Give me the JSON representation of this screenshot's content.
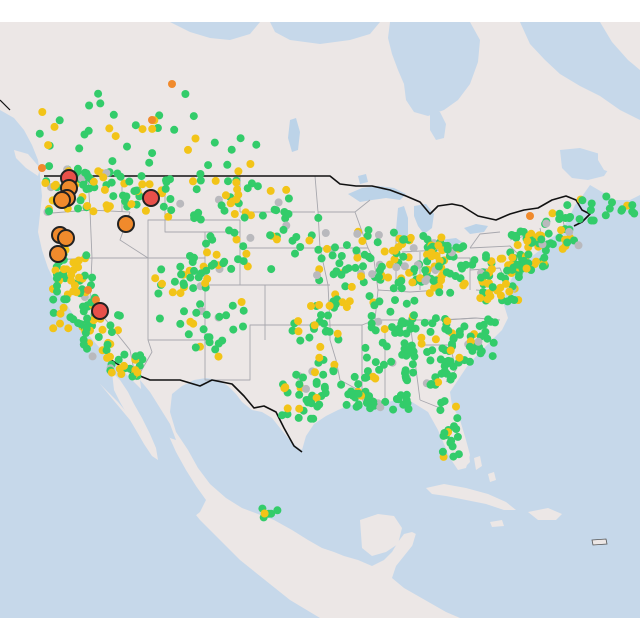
{
  "map": {
    "colors": {
      "ocean": "#c6d8ea",
      "land": "#ece7e6",
      "land_alt": "#e9e4e3",
      "lake": "#bcd3e8",
      "state_border": "#a7a7ad",
      "country_border": "#111111",
      "good": "#33cc6a",
      "moderate": "#f2c418",
      "usg": "#f08a2c",
      "unhealthy": "#e8504a",
      "no_data": "#b9b9bd",
      "marker_outline": "#222222"
    },
    "marker_categories": [
      "good",
      "moderate",
      "usg",
      "unhealthy",
      "no_data"
    ]
  }
}
